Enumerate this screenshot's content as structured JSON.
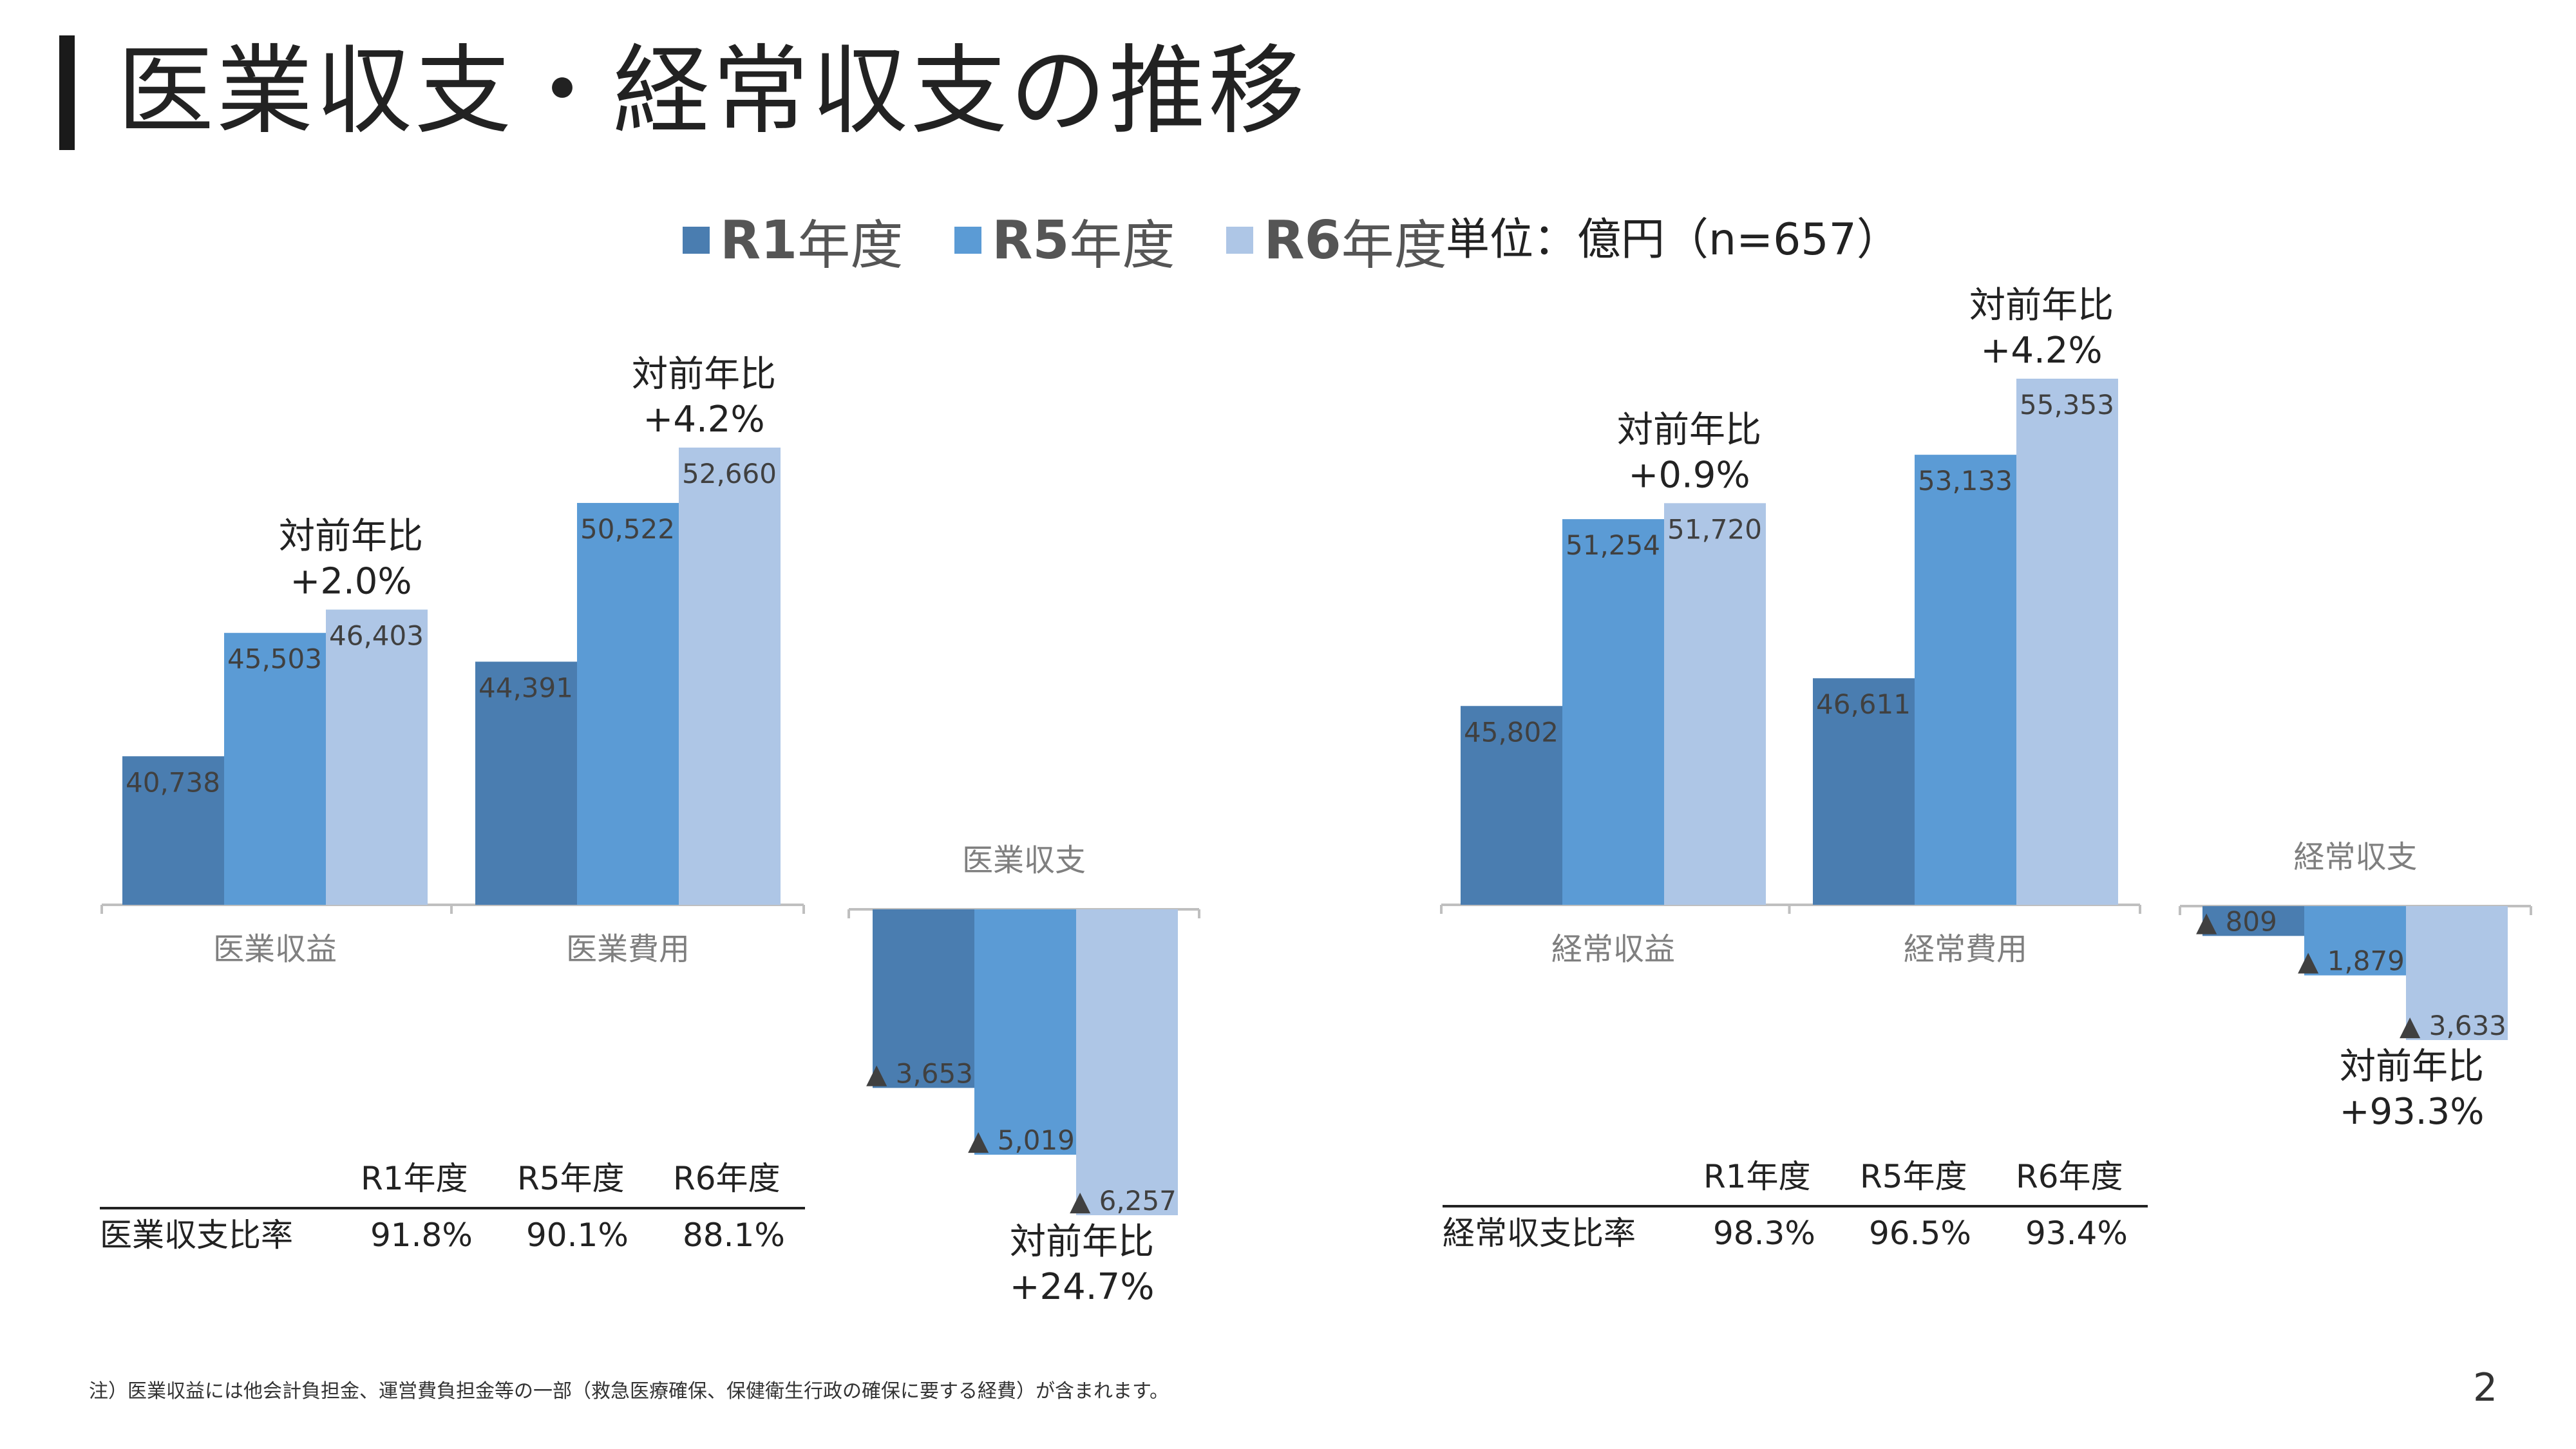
{
  "title": "医業収支・経常収支の推移",
  "legend": [
    {
      "key": "R1",
      "suffix": "年度",
      "color": "#4a7db0"
    },
    {
      "key": "R5",
      "suffix": "年度",
      "color": "#5b9bd5"
    },
    {
      "key": "R6",
      "suffix": "年度",
      "color": "#aec6e6"
    }
  ],
  "unit": "単位：億円（n=657）",
  "colors": {
    "r1": "#4a7db0",
    "r5": "#5b9bd5",
    "r6": "#aec6e6",
    "axis": "#bfbfbf",
    "label": "#404040",
    "category": "#7f7f7f"
  },
  "chart_data": [
    {
      "type": "bar",
      "categories": [
        "医業収益",
        "医業費用"
      ],
      "series": [
        {
          "name": "R1年度",
          "values": [
            40738,
            44391
          ]
        },
        {
          "name": "R5年度",
          "values": [
            45503,
            50522
          ]
        },
        {
          "name": "R6年度",
          "values": [
            46403,
            52660
          ]
        }
      ],
      "value_labels": [
        [
          "40,738",
          "44,391"
        ],
        [
          "45,503",
          "50,522"
        ],
        [
          "46,403",
          "52,660"
        ]
      ],
      "annotations": [
        {
          "category": "医業収益",
          "line1": "対前年比",
          "line2": "+2.0%"
        },
        {
          "category": "医業費用",
          "line1": "対前年比",
          "line2": "+4.2%"
        }
      ]
    },
    {
      "type": "bar",
      "title": "医業収支",
      "categories": [
        "R1年度",
        "R5年度",
        "R6年度"
      ],
      "values": [
        -3653,
        -5019,
        -6257
      ],
      "value_labels": [
        "▲ 3,653",
        "▲ 5,019",
        "▲ 6,257"
      ],
      "annotation": {
        "line1": "対前年比",
        "line2": "+24.7%"
      }
    },
    {
      "type": "bar",
      "categories": [
        "経常収益",
        "経常費用"
      ],
      "series": [
        {
          "name": "R1年度",
          "values": [
            45802,
            46611
          ]
        },
        {
          "name": "R5年度",
          "values": [
            51254,
            53133
          ]
        },
        {
          "name": "R6年度",
          "values": [
            51720,
            55353
          ]
        }
      ],
      "value_labels": [
        [
          "45,802",
          "46,611"
        ],
        [
          "51,254",
          "53,133"
        ],
        [
          "51,720",
          "55,353"
        ]
      ],
      "annotations": [
        {
          "category": "経常収益",
          "line1": "対前年比",
          "line2": "+0.9%"
        },
        {
          "category": "経常費用",
          "line1": "対前年比",
          "line2": "+4.2%"
        }
      ]
    },
    {
      "type": "bar",
      "title": "経常収支",
      "categories": [
        "R1年度",
        "R5年度",
        "R6年度"
      ],
      "values": [
        -809,
        -1879,
        -3633
      ],
      "value_labels": [
        "▲ 809",
        "▲ 1,879",
        "▲ 3,633"
      ],
      "annotation": {
        "line1": "対前年比",
        "line2": "+93.3%"
      }
    }
  ],
  "tables": [
    {
      "headers": [
        "R1年度",
        "R5年度",
        "R6年度"
      ],
      "row_label": "医業収支比率",
      "values": [
        "91.8%",
        "90.1%",
        "88.1%"
      ]
    },
    {
      "headers": [
        "R1年度",
        "R5年度",
        "R6年度"
      ],
      "row_label": "経常収支比率",
      "values": [
        "98.3%",
        "96.5%",
        "93.4%"
      ]
    }
  ],
  "footnote": "注）医業収益には他会計負担金、運営費負担金等の一部（救急医療確保、保健衛生行政の確保に要する経費）が含まれます。",
  "page_number": "2"
}
